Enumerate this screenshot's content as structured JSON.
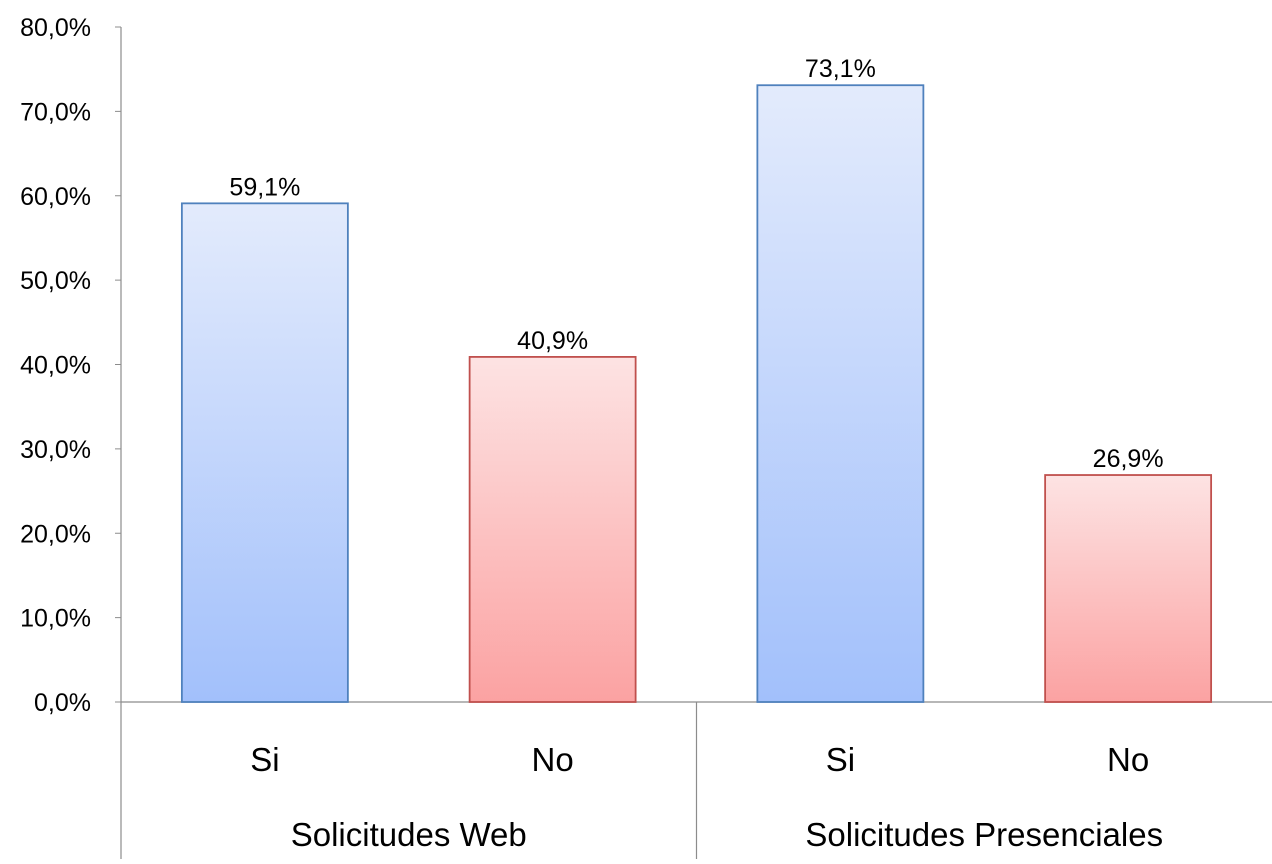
{
  "chart_data": {
    "type": "bar",
    "ylim": [
      0,
      80
    ],
    "yticks": [
      "0,0%",
      "10,0%",
      "20,0%",
      "30,0%",
      "40,0%",
      "50,0%",
      "60,0%",
      "70,0%",
      "80,0%"
    ],
    "grid": false,
    "groups": [
      {
        "label": "Solicitudes Web",
        "bars": [
          {
            "label": "Si",
            "value": 59.1,
            "value_label": "59,1%",
            "color": "#4f81bd",
            "fill_top": "#e3ebfc",
            "fill_bottom": "#a2c0fb"
          },
          {
            "label": "No",
            "value": 40.9,
            "value_label": "40,9%",
            "color": "#c0504d",
            "fill_top": "#fde3e3",
            "fill_bottom": "#fba2a2"
          }
        ]
      },
      {
        "label": "Solicitudes Presenciales",
        "bars": [
          {
            "label": "Si",
            "value": 73.1,
            "value_label": "73,1%",
            "color": "#4f81bd",
            "fill_top": "#e3ebfc",
            "fill_bottom": "#a2c0fb"
          },
          {
            "label": "No",
            "value": 26.9,
            "value_label": "26,9%",
            "color": "#c0504d",
            "fill_top": "#fde3e3",
            "fill_bottom": "#fba2a2"
          }
        ]
      }
    ]
  }
}
